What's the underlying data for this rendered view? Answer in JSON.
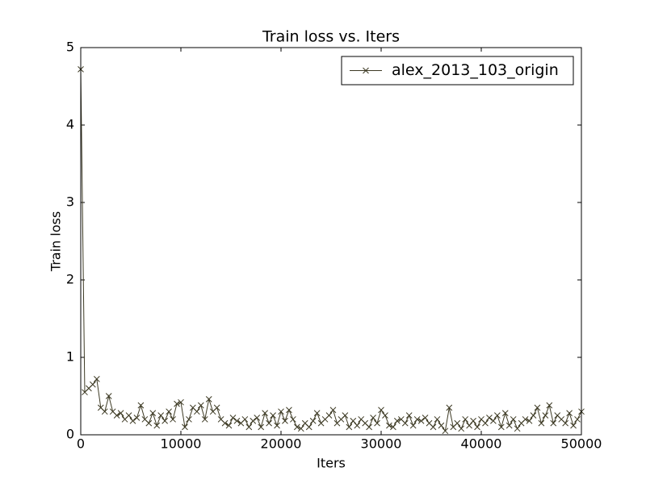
{
  "chart_data": {
    "type": "line",
    "title": "Train loss  vs. Iters",
    "xlabel": "Iters",
    "ylabel": "Train loss",
    "x": [
      0,
      400,
      800,
      1200,
      1600,
      2000,
      2400,
      2800,
      3200,
      3600,
      4000,
      4400,
      4800,
      5200,
      5600,
      6000,
      6400,
      6800,
      7200,
      7600,
      8000,
      8400,
      8800,
      9200,
      9600,
      10000,
      10400,
      10800,
      11200,
      11600,
      12000,
      12400,
      12800,
      13200,
      13600,
      14000,
      14400,
      14800,
      15200,
      15600,
      16000,
      16400,
      16800,
      17200,
      17600,
      18000,
      18400,
      18800,
      19200,
      19600,
      20000,
      20400,
      20800,
      21200,
      21600,
      22000,
      22400,
      22800,
      23200,
      23600,
      24000,
      24400,
      24800,
      25200,
      25600,
      26000,
      26400,
      26800,
      27200,
      27600,
      28000,
      28400,
      28800,
      29200,
      29600,
      30000,
      30400,
      30800,
      31200,
      31600,
      32000,
      32400,
      32800,
      33200,
      33600,
      34000,
      34400,
      34800,
      35200,
      35600,
      36000,
      36400,
      36800,
      37200,
      37600,
      38000,
      38400,
      38800,
      39200,
      39600,
      40000,
      40400,
      40800,
      41200,
      41600,
      42000,
      42400,
      42800,
      43200,
      43600,
      44000,
      44400,
      44800,
      45200,
      45600,
      46000,
      46400,
      46800,
      47200,
      47600,
      48000,
      48400,
      48800,
      49200,
      49600,
      50000
    ],
    "series": [
      {
        "name": "alex_2013_103_origin",
        "color": "#3d3a24",
        "marker": "x",
        "values": [
          4.72,
          0.55,
          0.6,
          0.65,
          0.72,
          0.35,
          0.3,
          0.5,
          0.3,
          0.25,
          0.28,
          0.2,
          0.25,
          0.18,
          0.22,
          0.38,
          0.2,
          0.15,
          0.28,
          0.12,
          0.25,
          0.18,
          0.3,
          0.2,
          0.4,
          0.42,
          0.1,
          0.2,
          0.35,
          0.3,
          0.38,
          0.2,
          0.46,
          0.3,
          0.35,
          0.2,
          0.15,
          0.12,
          0.22,
          0.18,
          0.15,
          0.2,
          0.1,
          0.18,
          0.22,
          0.1,
          0.28,
          0.15,
          0.25,
          0.12,
          0.3,
          0.18,
          0.32,
          0.2,
          0.1,
          0.08,
          0.15,
          0.1,
          0.18,
          0.28,
          0.15,
          0.2,
          0.25,
          0.32,
          0.15,
          0.2,
          0.25,
          0.1,
          0.18,
          0.12,
          0.2,
          0.15,
          0.1,
          0.22,
          0.15,
          0.32,
          0.25,
          0.12,
          0.1,
          0.18,
          0.2,
          0.15,
          0.25,
          0.12,
          0.2,
          0.18,
          0.22,
          0.15,
          0.1,
          0.2,
          0.12,
          0.05,
          0.35,
          0.1,
          0.15,
          0.08,
          0.2,
          0.12,
          0.18,
          0.1,
          0.2,
          0.15,
          0.22,
          0.18,
          0.25,
          0.1,
          0.28,
          0.12,
          0.2,
          0.08,
          0.15,
          0.2,
          0.18,
          0.25,
          0.35,
          0.15,
          0.25,
          0.38,
          0.15,
          0.25,
          0.2,
          0.15,
          0.28,
          0.12,
          0.2,
          0.3
        ]
      }
    ],
    "xlim": [
      0,
      50000
    ],
    "ylim": [
      0,
      5
    ],
    "xticks": [
      0,
      10000,
      20000,
      30000,
      40000,
      50000
    ],
    "yticks": [
      0,
      1,
      2,
      3,
      4,
      5
    ],
    "grid": false,
    "legend": "upper right"
  }
}
